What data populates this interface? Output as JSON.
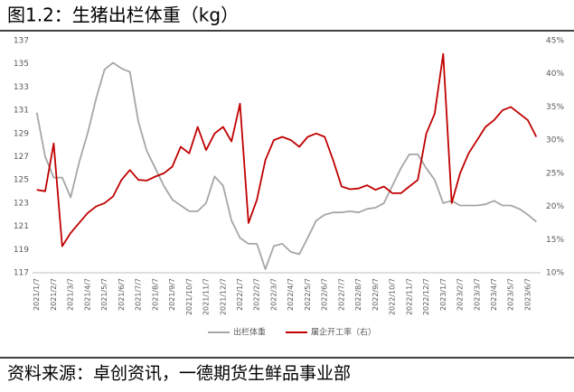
{
  "chart_data": {
    "type": "line",
    "title": "图1.2：生猪出栏体重（kg）",
    "source": "资料来源：卓创资讯，一德期货生鲜品事业部",
    "categories": [
      "2021/1/7",
      null,
      "2021/2/7",
      null,
      "2021/3/7",
      null,
      "2021/4/7",
      null,
      "2021/5/7",
      null,
      "2021/6/7",
      null,
      "2021/7/7",
      null,
      "2021/8/7",
      null,
      "2021/9/7",
      null,
      "2021/10/7",
      null,
      "2021/11/7",
      null,
      "2021/12/7",
      null,
      "2022/1/7",
      null,
      "2022/2/7",
      null,
      "2022/3/7",
      null,
      "2022/4/7",
      null,
      "2022/5/7",
      null,
      "2022/6/7",
      null,
      "2022/7/7",
      null,
      "2022/8/7",
      null,
      "2022/9/7",
      null,
      "2022/10/7",
      null,
      "2022/11/7",
      null,
      "2022/12/7",
      null,
      "2023/1/7",
      null,
      "2023/2/7",
      null,
      "2023/3/7",
      null,
      "2023/4/7",
      null,
      "2023/5/7",
      null,
      "2023/6/7",
      null
    ],
    "series": [
      {
        "name": "出栏体重",
        "color": "#a6a6a6",
        "axis": "y",
        "values": [
          130.8,
          127,
          125.2,
          125.2,
          123.5,
          126.5,
          129,
          132,
          134.5,
          135.1,
          134.6,
          134.3,
          130,
          127.5,
          126,
          124.5,
          123.3,
          122.8,
          122.3,
          122.3,
          123,
          125.3,
          124.5,
          121.5,
          120,
          119.5,
          119.5,
          117.3,
          119.3,
          119.5,
          118.8,
          118.6,
          120,
          121.5,
          122,
          122.2,
          122.2,
          122.3,
          122.2,
          122.5,
          122.6,
          123,
          124.5,
          126,
          127.2,
          127.2,
          126,
          125,
          123,
          123.2,
          122.8,
          122.8,
          122.8,
          122.9,
          123.2,
          122.8,
          122.8,
          122.5,
          122,
          121.4
        ]
      },
      {
        "name": "屠企开工率（右）",
        "color": "#c00000",
        "axis": "y2",
        "values": [
          22.5,
          22.3,
          29.5,
          14,
          16,
          17.5,
          19,
          20,
          20.5,
          21.5,
          24,
          25.5,
          24,
          23.9,
          24.5,
          25,
          26,
          29,
          28,
          32,
          28.5,
          31,
          32,
          29.8,
          35.5,
          17.5,
          21,
          27,
          30,
          30.5,
          30,
          29,
          30.5,
          31,
          30.5,
          27,
          23,
          22.6,
          22.7,
          23.2,
          22.5,
          23,
          22,
          22,
          23,
          24,
          31,
          34,
          43,
          20.5,
          25,
          28,
          30,
          32,
          33,
          34.5,
          35,
          34,
          33,
          30.5
        ]
      }
    ],
    "ylim": [
      117,
      137
    ],
    "yticks": [
      117,
      119,
      121,
      123,
      125,
      127,
      129,
      131,
      133,
      135,
      137
    ],
    "y2lim": [
      10,
      45
    ],
    "y2ticks": [
      {
        "value": 10,
        "label": "10%"
      },
      {
        "value": 15,
        "label": "15%"
      },
      {
        "value": 20,
        "label": "20%"
      },
      {
        "value": 25,
        "label": "25%"
      },
      {
        "value": 30,
        "label": "30%"
      },
      {
        "value": 35,
        "label": "35%"
      },
      {
        "value": 40,
        "label": "40%"
      },
      {
        "value": 45,
        "label": "45%"
      }
    ]
  }
}
